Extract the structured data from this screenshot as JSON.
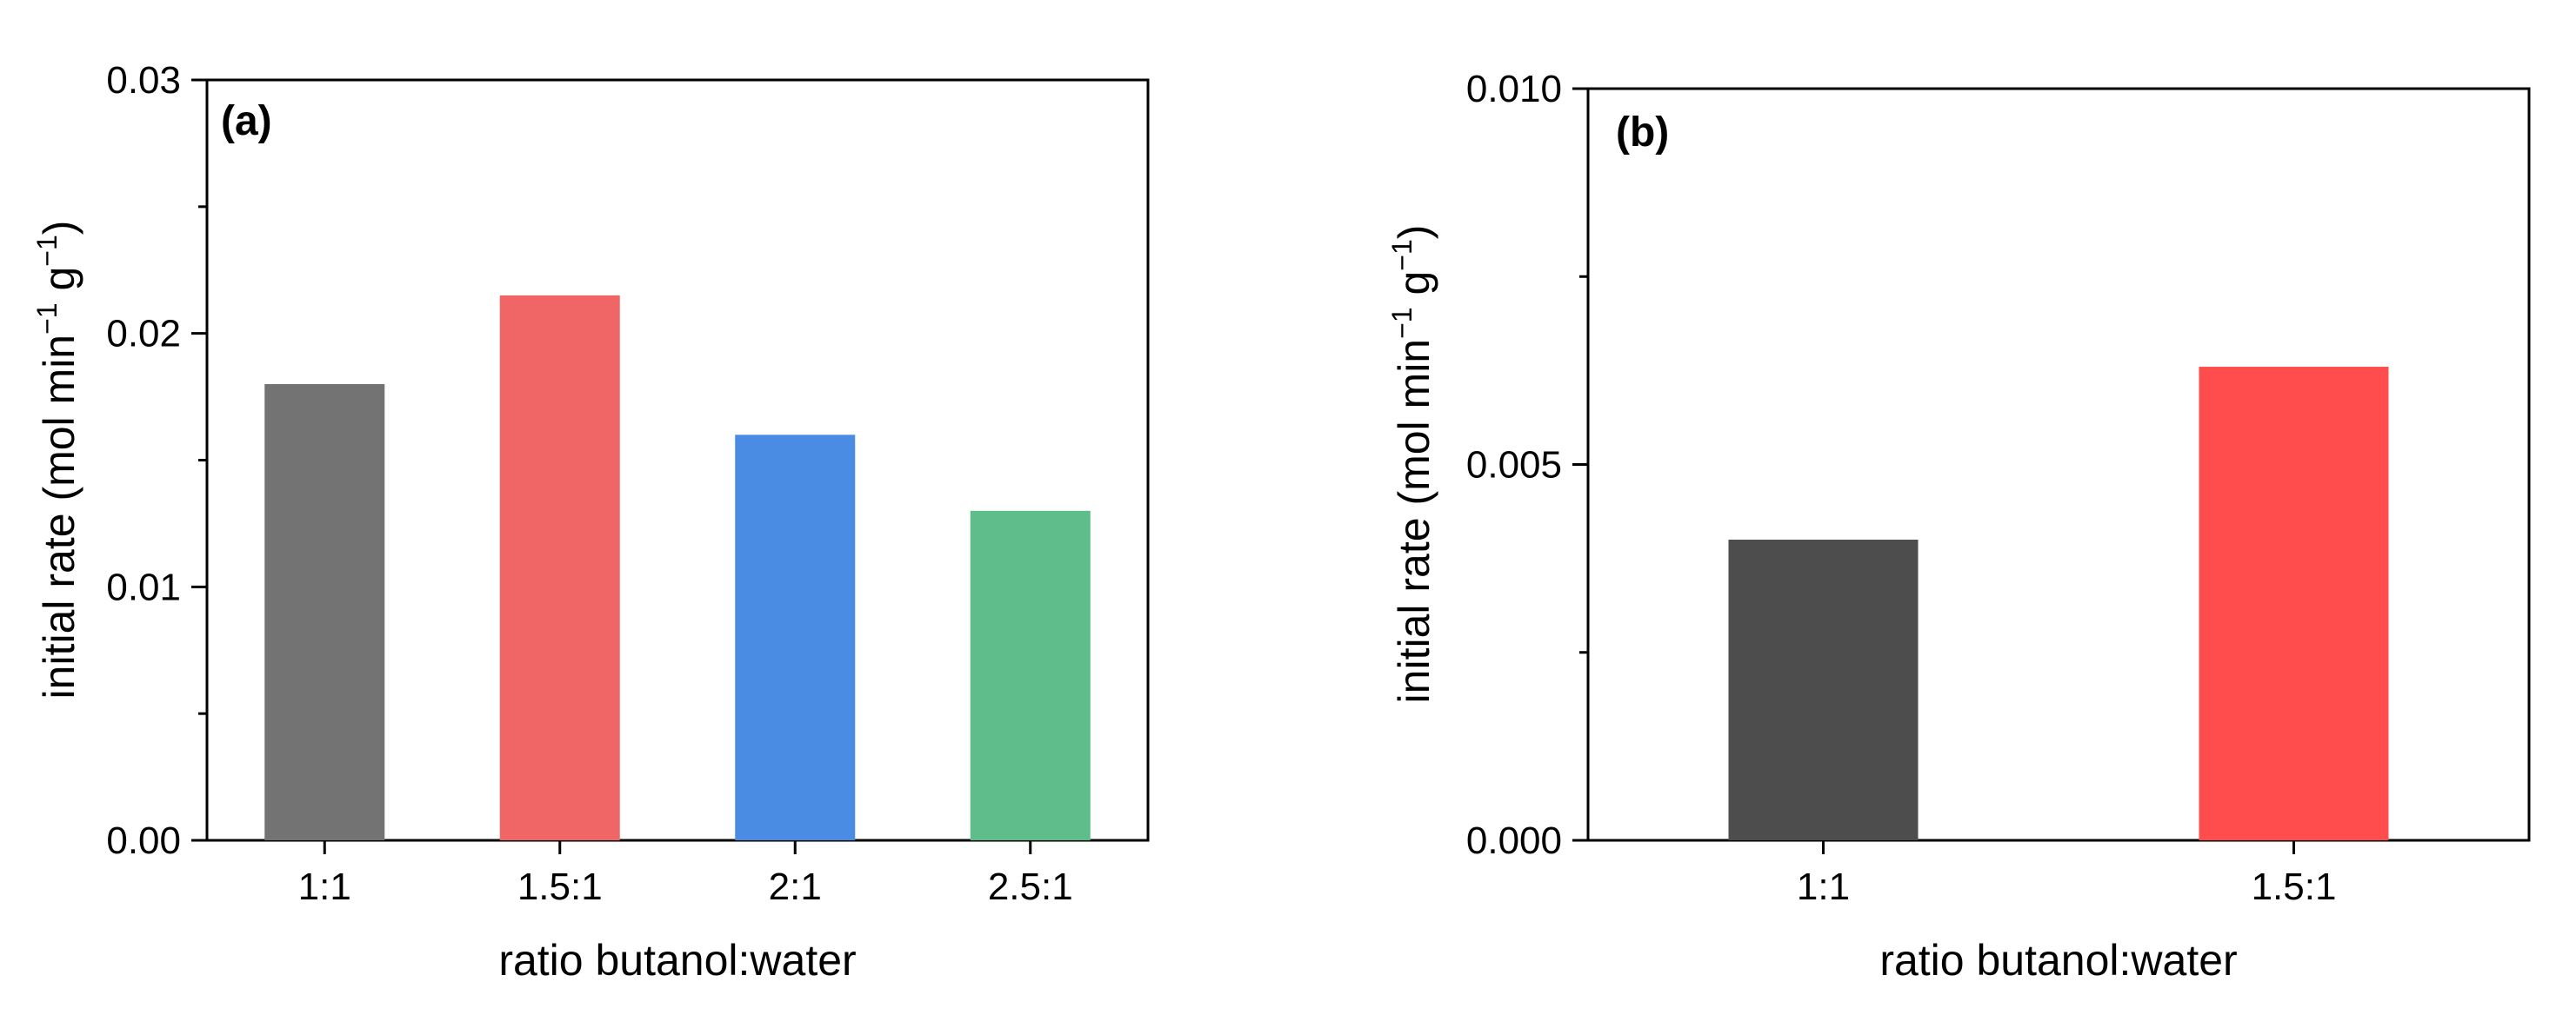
{
  "chart_data": [
    {
      "type": "bar",
      "panel_label": "(a)",
      "title": "",
      "xlabel": "ratio butanol:water",
      "ylabel": "initial rate (mol min",
      "ylabel_sup1": "−1",
      "ylabel_mid": " g",
      "ylabel_sup2": "−1",
      "ylabel_end": ")",
      "categories": [
        "1:1",
        "1.5:1",
        "2:1",
        "2.5:1"
      ],
      "values": [
        0.018,
        0.0215,
        0.016,
        0.013
      ],
      "colors": [
        "#737373",
        "#f06666",
        "#4a8be3",
        "#5ebd8a"
      ],
      "ylim": [
        0,
        0.03
      ],
      "yticks": [
        0.0,
        0.01,
        0.02,
        0.03
      ],
      "ytick_labels": [
        "0.00",
        "0.01",
        "0.02",
        "0.03"
      ],
      "grid": false
    },
    {
      "type": "bar",
      "panel_label": "(b)",
      "title": "",
      "xlabel": "ratio butanol:water",
      "ylabel": "initial rate (mol min",
      "ylabel_sup1": "−1",
      "ylabel_mid": " g",
      "ylabel_sup2": "−1",
      "ylabel_end": ")",
      "categories": [
        "1:1",
        "1.5:1"
      ],
      "values": [
        0.004,
        0.0063
      ],
      "colors": [
        "#4d4d4d",
        "#ff4d4d"
      ],
      "ylim": [
        0,
        0.01
      ],
      "yticks": [
        0.0,
        0.005,
        0.01
      ],
      "ytick_labels": [
        "0.000",
        "0.005",
        "0.010"
      ],
      "grid": false
    }
  ]
}
